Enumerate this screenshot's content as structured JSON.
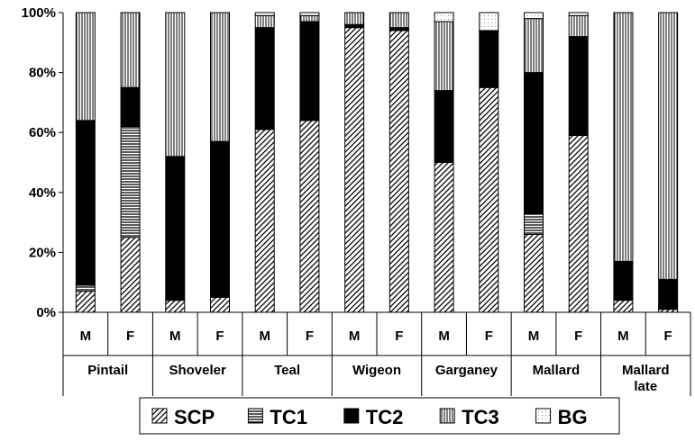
{
  "chart_data": {
    "type": "bar",
    "stacked": "percent",
    "groups": [
      "Pintail",
      "Shoveler",
      "Teal",
      "Wigeon",
      "Garganey",
      "Mallard",
      "Mallard late"
    ],
    "subcategories": [
      "M",
      "F"
    ],
    "categories": [
      "M",
      "F",
      "M",
      "F",
      "M",
      "F",
      "M",
      "F",
      "M",
      "F",
      "M",
      "F",
      "M",
      "F"
    ],
    "series": [
      {
        "name": "SCP",
        "values": [
          7,
          25,
          4,
          5,
          61,
          64,
          95,
          94,
          50,
          75,
          26,
          59,
          4,
          1
        ]
      },
      {
        "name": "TC1",
        "values": [
          2,
          37,
          0,
          0,
          0,
          0,
          0,
          0,
          0,
          0,
          7,
          0,
          0,
          0
        ]
      },
      {
        "name": "TC2",
        "values": [
          55,
          13,
          48,
          52,
          34,
          33,
          1,
          1,
          24,
          19,
          47,
          33,
          13,
          10
        ]
      },
      {
        "name": "TC3",
        "values": [
          36,
          25,
          48,
          43,
          4,
          2,
          4,
          5,
          23,
          0,
          18,
          7,
          83,
          89
        ]
      },
      {
        "name": "BG",
        "values": [
          0,
          0,
          0,
          0,
          1,
          1,
          0,
          0,
          3,
          6,
          2,
          1,
          0,
          0
        ]
      }
    ],
    "y_ticks": [
      "0%",
      "20%",
      "40%",
      "60%",
      "80%",
      "100%"
    ],
    "ylim": [
      0,
      100
    ],
    "grid": false,
    "legend_position": "bottom",
    "colors": {
      "axis": "#000000",
      "bar_fill": "#ffffff",
      "TC2": "#000000",
      "BG_dots": "#888888"
    }
  }
}
